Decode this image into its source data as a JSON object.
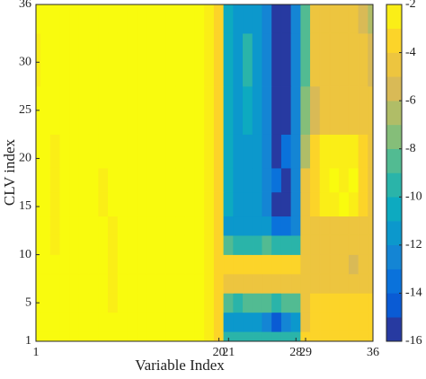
{
  "chart_data": {
    "type": "contour",
    "xlabel": "Variable Index",
    "ylabel": "CLV index",
    "x": [
      1,
      2,
      3,
      4,
      5,
      6,
      7,
      8,
      9,
      10,
      11,
      12,
      13,
      14,
      15,
      16,
      17,
      18,
      19,
      20,
      21,
      22,
      23,
      24,
      25,
      26,
      27,
      28,
      29,
      30,
      31,
      32,
      33,
      34,
      35,
      36
    ],
    "y": [
      1,
      3,
      5,
      7,
      9,
      11,
      13,
      15,
      18,
      20,
      25,
      30,
      36
    ],
    "z": [
      [
        -1.8,
        -1.8,
        -1.8,
        -1.8,
        -1.8,
        -1.8,
        -1.8,
        -1.8,
        -1.8,
        -1.8,
        -1.8,
        -1.8,
        -1.8,
        -1.8,
        -1.8,
        -1.8,
        -1.8,
        -1.8,
        -2.5,
        -3.5,
        -10,
        -10,
        -10,
        -10,
        -10,
        -10,
        -10,
        -10,
        -4,
        -4,
        -4,
        -4,
        -4,
        -4,
        -4,
        -4
      ],
      [
        -1.8,
        -1.8,
        -1.8,
        -1.8,
        -1.8,
        -1.8,
        -1.8,
        -1.8,
        -1.8,
        -1.8,
        -1.8,
        -1.8,
        -1.8,
        -1.8,
        -1.8,
        -1.8,
        -1.8,
        -1.8,
        -2.5,
        -3.5,
        -12,
        -12,
        -12,
        -12,
        -13,
        -15,
        -13,
        -12,
        -4.5,
        -4,
        -4,
        -4,
        -4,
        -4,
        -4,
        -4
      ],
      [
        -1.8,
        -1.8,
        -1.8,
        -1.8,
        -1.8,
        -1.8,
        -1.8,
        -1.8,
        -3,
        -1.8,
        -1.8,
        -1.8,
        -1.8,
        -1.8,
        -1.8,
        -1.8,
        -1.8,
        -1.8,
        -2.5,
        -3.5,
        -9,
        -10,
        -9,
        -9,
        -9,
        -10,
        -9,
        -9,
        -4.5,
        -4,
        -4,
        -4,
        -4,
        -4,
        -4,
        -4
      ],
      [
        -1.8,
        -1.8,
        -1.8,
        -1.8,
        -1.8,
        -1.8,
        -1.8,
        -1.8,
        -3,
        -1.8,
        -1.8,
        -1.8,
        -1.8,
        -1.8,
        -1.8,
        -1.8,
        -1.8,
        -1.8,
        -2.5,
        -3.5,
        -5,
        -5,
        -5,
        -5,
        -5,
        -5,
        -5,
        -5,
        -4.5,
        -4.5,
        -4.5,
        -4.5,
        -4.5,
        -4.5,
        -4.5,
        -4.5
      ],
      [
        -1.8,
        -1.8,
        -1.8,
        -1.8,
        -1.8,
        -1.8,
        -1.8,
        -1.8,
        -3,
        -1.8,
        -1.8,
        -1.8,
        -1.8,
        -1.8,
        -1.8,
        -1.8,
        -1.8,
        -1.8,
        -2.5,
        -3.5,
        -4,
        -4,
        -4,
        -4,
        -4,
        -4,
        -4,
        -4,
        -4.5,
        -4.5,
        -4.5,
        -4.5,
        -4.5,
        -5.5,
        -4.5,
        -4.5
      ],
      [
        -1.8,
        -1.8,
        -3,
        -1.8,
        -1.8,
        -1.8,
        -1.8,
        -1.8,
        -3,
        -1.8,
        -1.8,
        -1.8,
        -1.8,
        -1.8,
        -1.8,
        -1.8,
        -1.8,
        -1.8,
        -2.5,
        -3.5,
        -9,
        -9.5,
        -10,
        -9.5,
        -9,
        -10,
        -10,
        -9.5,
        -5,
        -4.5,
        -4.5,
        -4.5,
        -4.5,
        -4.5,
        -4.5,
        -4.5
      ],
      [
        -1.8,
        -1.8,
        -3,
        -1.8,
        -1.8,
        -1.8,
        -1.8,
        -1.8,
        -3,
        -1.8,
        -1.8,
        -1.8,
        -1.8,
        -1.8,
        -1.8,
        -1.8,
        -1.8,
        -1.8,
        -2.5,
        -3.5,
        -12,
        -12,
        -12,
        -12,
        -12,
        -14,
        -14,
        -13,
        -5,
        -4.5,
        -4.5,
        -4.5,
        -4.5,
        -4.5,
        -4.5,
        -4.5
      ],
      [
        -1.8,
        -1.8,
        -3,
        -1.8,
        -1.8,
        -1.8,
        -1.8,
        -3,
        -1.8,
        -1.8,
        -1.8,
        -1.8,
        -1.8,
        -1.8,
        -1.8,
        -1.8,
        -1.8,
        -1.8,
        -2.5,
        -3.5,
        -11,
        -12,
        -12,
        -12,
        -13,
        -15.5,
        -15.5,
        -13,
        -5,
        -4,
        -3,
        -3,
        -1.8,
        -3,
        -4,
        -4.5
      ],
      [
        -1.8,
        -1.8,
        -3,
        -1.8,
        -1.8,
        -1.8,
        -1.8,
        -3,
        -1.8,
        -1.8,
        -1.8,
        -1.8,
        -1.8,
        -1.8,
        -1.8,
        -1.8,
        -1.8,
        -1.8,
        -2.5,
        -3.5,
        -11,
        -12,
        -12,
        -12,
        -13,
        -14,
        -15.5,
        -13,
        -5,
        -4,
        -3,
        -1.8,
        -2.5,
        -1.8,
        -4,
        -4.5
      ],
      [
        -1.8,
        -1.8,
        -3,
        -1.8,
        -1.8,
        -1.8,
        -1.8,
        -1.8,
        -1.8,
        -1.8,
        -1.8,
        -1.8,
        -1.8,
        -1.8,
        -1.8,
        -1.8,
        -1.8,
        -1.8,
        -2.5,
        -3.5,
        -11,
        -12,
        -12,
        -12,
        -13,
        -15.5,
        -14,
        -13,
        -7,
        -4,
        -3,
        -2.5,
        -2.5,
        -3,
        -4,
        -4.5
      ],
      [
        -1.8,
        -1.8,
        -1.8,
        -1.8,
        -1.8,
        -1.8,
        -1.8,
        -1.8,
        -1.8,
        -1.8,
        -1.8,
        -1.8,
        -1.8,
        -1.8,
        -1.8,
        -1.8,
        -1.8,
        -1.8,
        -2.5,
        -3.5,
        -11,
        -12,
        -11,
        -12,
        -13,
        -15.5,
        -15.5,
        -13,
        -8,
        -6,
        -4.5,
        -4.5,
        -4.5,
        -4.5,
        -4.5,
        -5
      ],
      [
        -2.5,
        -1.8,
        -1.8,
        -1.8,
        -1.8,
        -1.8,
        -1.8,
        -1.8,
        -1.8,
        -1.8,
        -1.8,
        -1.8,
        -1.8,
        -1.8,
        -1.8,
        -1.8,
        -1.8,
        -1.8,
        -2.5,
        -3.5,
        -11,
        -12,
        -10,
        -12,
        -12.5,
        -15.5,
        -15.5,
        -13,
        -9,
        -5,
        -5,
        -5,
        -5,
        -5,
        -5,
        -6
      ],
      [
        -1.8,
        -1.8,
        -1.8,
        -1.8,
        -1.8,
        -1.8,
        -1.8,
        -1.8,
        -1.8,
        -1.8,
        -1.8,
        -1.8,
        -1.8,
        -1.8,
        -1.8,
        -1.8,
        -1.8,
        -1.8,
        -2.5,
        -3.5,
        -11,
        -12,
        -12,
        -12,
        -12.5,
        -15.5,
        -15.5,
        -13,
        -9,
        -5,
        -5,
        -5,
        -5,
        -5,
        -6,
        -7
      ]
    ],
    "xlim": [
      1,
      36
    ],
    "ylim": [
      1,
      36
    ],
    "xticks": [
      1,
      20,
      21,
      28,
      29,
      36
    ],
    "yticks": [
      1,
      5,
      10,
      15,
      20,
      25,
      30,
      36
    ],
    "clim": [
      -16,
      -2
    ],
    "cticks": [
      -16,
      -14,
      -12,
      -10,
      -8,
      -6,
      -4,
      -2
    ],
    "colormap": [
      "#352a87",
      "#0363e1",
      "#1485d4",
      "#06a7c6",
      "#38b99e",
      "#92bf73",
      "#d9ba56",
      "#fcce2e",
      "#f9fb0e"
    ]
  }
}
